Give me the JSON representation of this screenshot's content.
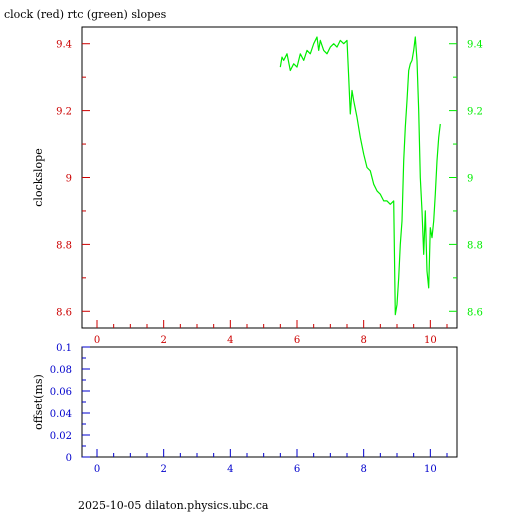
{
  "title": "clock (red) rtc (green) slopes",
  "footer": "2025-10-05  dilaton.physics.ubc.ca",
  "colors": {
    "red": "#cc0000",
    "green": "#00ee00",
    "blue": "#0000cc",
    "axis": "#000000"
  },
  "chart_data": [
    {
      "type": "line",
      "ylabel": "clockslope",
      "xlim": [
        -0.45,
        10.8
      ],
      "ylim": [
        8.55,
        9.45
      ],
      "xticks": [
        0,
        2,
        4,
        6,
        8,
        10
      ],
      "yticks_left": [
        8.6,
        8.8,
        9,
        9.2,
        9.4
      ],
      "yticks_left_labels": [
        "8.6",
        "8.8",
        "9",
        "9.2",
        "9.4"
      ],
      "yticks_right": [
        8.6,
        8.8,
        9,
        9.2,
        9.4
      ],
      "yticks_right_labels": [
        "8.6",
        "8.8",
        "9",
        "9.2",
        "9.4"
      ],
      "series": [
        {
          "color": "green",
          "x": [
            5.5,
            5.55,
            5.6,
            5.7,
            5.8,
            5.9,
            6.0,
            6.1,
            6.2,
            6.3,
            6.4,
            6.5,
            6.6,
            6.65,
            6.7,
            6.8,
            6.9,
            7.0,
            7.1,
            7.2,
            7.3,
            7.4,
            7.5,
            7.55,
            7.6,
            7.65,
            7.7,
            7.8,
            7.9,
            8.0,
            8.1,
            8.2,
            8.3,
            8.4,
            8.5,
            8.6,
            8.7,
            8.8,
            8.9,
            8.95,
            9.0,
            9.05,
            9.1,
            9.15,
            9.2,
            9.25,
            9.3,
            9.35,
            9.4,
            9.45,
            9.5,
            9.55,
            9.6,
            9.65,
            9.7,
            9.75,
            9.8,
            9.85,
            9.9,
            9.95,
            10.0,
            10.05,
            10.1,
            10.15,
            10.2,
            10.25,
            10.3
          ],
          "y": [
            9.33,
            9.36,
            9.35,
            9.37,
            9.32,
            9.34,
            9.33,
            9.37,
            9.35,
            9.38,
            9.37,
            9.4,
            9.42,
            9.38,
            9.41,
            9.38,
            9.37,
            9.39,
            9.4,
            9.39,
            9.41,
            9.4,
            9.41,
            9.3,
            9.19,
            9.26,
            9.23,
            9.18,
            9.12,
            9.07,
            9.03,
            9.02,
            8.98,
            8.96,
            8.95,
            8.93,
            8.93,
            8.92,
            8.93,
            8.59,
            8.62,
            8.7,
            8.8,
            8.87,
            9.05,
            9.15,
            9.23,
            9.32,
            9.34,
            9.35,
            9.38,
            9.42,
            9.35,
            9.2,
            9.0,
            8.9,
            8.77,
            8.9,
            8.72,
            8.67,
            8.85,
            8.82,
            8.87,
            8.95,
            9.05,
            9.12,
            9.16
          ]
        }
      ]
    },
    {
      "type": "line",
      "ylabel": "offset(ms)",
      "xlim": [
        -0.45,
        10.8
      ],
      "ylim": [
        0,
        0.1
      ],
      "xticks": [
        0,
        2,
        4,
        6,
        8,
        10
      ],
      "yticks_left": [
        0,
        0.02,
        0.04,
        0.06,
        0.08,
        0.1
      ],
      "yticks_left_labels": [
        "0",
        "0.02",
        "0.04",
        "0.06",
        "0.08",
        "0.1"
      ],
      "series": []
    }
  ]
}
